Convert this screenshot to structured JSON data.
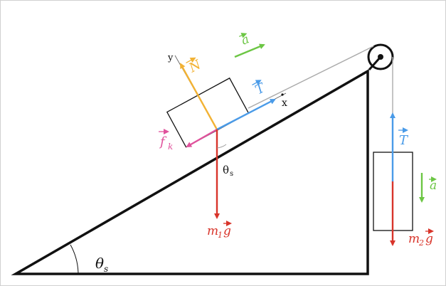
{
  "colors": {
    "normal": "#f2b234",
    "tension": "#4a9be8",
    "friction": "#e0529c",
    "gravity": "#d8342a",
    "acceleration": "#6cc644",
    "line": "#111111",
    "rope": "#aaaaaa"
  },
  "labels": {
    "normal": "N",
    "tension_block1": "T",
    "tension_block2": "T",
    "friction": "f",
    "friction_sub": "k",
    "gravity1_m": "m",
    "gravity1_sub": "1",
    "gravity1_g": "g",
    "gravity2_m": "m",
    "gravity2_sub": "2",
    "gravity2_g": "g",
    "accel_top": "a",
    "accel_right": "a",
    "axis_x": "x",
    "axis_y": "y",
    "theta_block": "θ",
    "theta_block_sub": "s",
    "theta_base": "θ",
    "theta_base_sub": "s"
  },
  "icons": {
    "vector_arrow_glyph": "→"
  }
}
